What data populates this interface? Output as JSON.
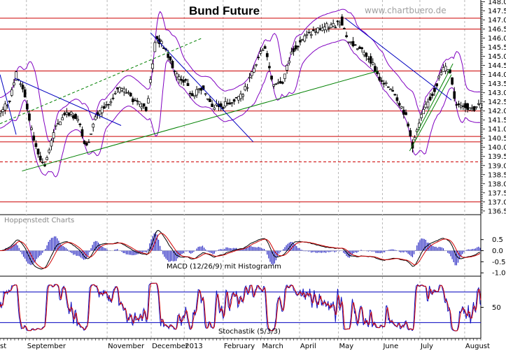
{
  "chart_data": {
    "type": "candlestick",
    "title": "Bund Future",
    "watermark": "www.chartbuero.de",
    "source_label": "Hoppenstedt Charts",
    "price_axis_ticks": [
      "148.0",
      "147.5",
      "147.0",
      "146.5",
      "146.0",
      "145.5",
      "145.0",
      "144.5",
      "144.0",
      "143.5",
      "143.0",
      "142.5",
      "142.0",
      "141.5",
      "141.0",
      "140.5",
      "140.0",
      "139.5",
      "139.0",
      "138.5",
      "138.0",
      "137.5",
      "137.0",
      "136.5"
    ],
    "price_ylim": [
      136.3,
      148.1
    ],
    "months": [
      {
        "label": "st",
        "index": 0
      },
      {
        "label": "September",
        "index": 36
      },
      {
        "label": "November",
        "index": 146
      },
      {
        "label": "December",
        "index": 206
      },
      {
        "label": "2013",
        "index": 251
      },
      {
        "label": "February",
        "index": 304
      },
      {
        "label": "March",
        "index": 356
      },
      {
        "label": "April",
        "index": 408
      },
      {
        "label": "May",
        "index": 461
      },
      {
        "label": "June",
        "index": 521
      },
      {
        "label": "July",
        "index": 572
      },
      {
        "label": "August",
        "index": 633
      }
    ],
    "closes": [
      {
        "i": 0,
        "v": 141.9
      },
      {
        "i": 12,
        "v": 142.5
      },
      {
        "i": 22,
        "v": 144.0
      },
      {
        "i": 32,
        "v": 143.2
      },
      {
        "i": 45,
        "v": 140.5
      },
      {
        "i": 60,
        "v": 138.9
      },
      {
        "i": 75,
        "v": 141.0
      },
      {
        "i": 90,
        "v": 142.0
      },
      {
        "i": 105,
        "v": 141.6
      },
      {
        "i": 118,
        "v": 140.0
      },
      {
        "i": 130,
        "v": 141.8
      },
      {
        "i": 145,
        "v": 142.3
      },
      {
        "i": 160,
        "v": 143.2
      },
      {
        "i": 172,
        "v": 143.0
      },
      {
        "i": 185,
        "v": 142.5
      },
      {
        "i": 200,
        "v": 142.1
      },
      {
        "i": 212,
        "v": 146.0
      },
      {
        "i": 225,
        "v": 145.5
      },
      {
        "i": 240,
        "v": 144.0
      },
      {
        "i": 252,
        "v": 143.6
      },
      {
        "i": 262,
        "v": 142.8
      },
      {
        "i": 275,
        "v": 143.3
      },
      {
        "i": 290,
        "v": 142.2
      },
      {
        "i": 305,
        "v": 142.3
      },
      {
        "i": 318,
        "v": 142.6
      },
      {
        "i": 332,
        "v": 143.0
      },
      {
        "i": 345,
        "v": 144.2
      },
      {
        "i": 360,
        "v": 145.7
      },
      {
        "i": 372,
        "v": 143.5
      },
      {
        "i": 385,
        "v": 143.6
      },
      {
        "i": 398,
        "v": 145.3
      },
      {
        "i": 410,
        "v": 145.9
      },
      {
        "i": 425,
        "v": 146.3
      },
      {
        "i": 440,
        "v": 146.6
      },
      {
        "i": 455,
        "v": 146.7
      },
      {
        "i": 465,
        "v": 147.0
      },
      {
        "i": 475,
        "v": 145.8
      },
      {
        "i": 490,
        "v": 145.4
      },
      {
        "i": 505,
        "v": 144.8
      },
      {
        "i": 520,
        "v": 143.5
      },
      {
        "i": 535,
        "v": 143.2
      },
      {
        "i": 552,
        "v": 141.8
      },
      {
        "i": 562,
        "v": 140.1
      },
      {
        "i": 575,
        "v": 141.8
      },
      {
        "i": 590,
        "v": 143.0
      },
      {
        "i": 603,
        "v": 144.3
      },
      {
        "i": 612,
        "v": 144.4
      },
      {
        "i": 620,
        "v": 142.5
      },
      {
        "i": 632,
        "v": 142.3
      },
      {
        "i": 645,
        "v": 142.1
      },
      {
        "i": 650,
        "v": 142.3
      }
    ],
    "horizontal_levels": [
      147.1,
      146.5,
      144.2,
      142.0,
      140.6,
      140.3,
      137.0
    ],
    "dashed_levels": [
      139.2
    ],
    "trend_lines": [
      {
        "type": "support",
        "color": "#008000",
        "points": [
          [
            30,
            138.7
          ],
          [
            515,
            144.2
          ]
        ]
      },
      {
        "type": "support",
        "color": "#008000",
        "points": [
          [
            558,
            139.8
          ],
          [
            615,
            144.0
          ]
        ]
      },
      {
        "type": "support",
        "color": "#008000",
        "points": [
          [
            568,
            140.8
          ],
          [
            617,
            144.6
          ]
        ]
      },
      {
        "type": "resistance",
        "color": "#0000c0",
        "points": [
          [
            0,
            144.0
          ],
          [
            22,
            140.7
          ]
        ]
      },
      {
        "type": "resistance",
        "color": "#0000c0",
        "points": [
          [
            20,
            143.8
          ],
          [
            165,
            141.2
          ]
        ]
      },
      {
        "type": "resistance",
        "color": "#0000c0",
        "points": [
          [
            205,
            146.3
          ],
          [
            345,
            140.3
          ]
        ]
      },
      {
        "type": "resistance",
        "color": "#0000c0",
        "points": [
          [
            470,
            147.1
          ],
          [
            615,
            142.6
          ]
        ]
      },
      {
        "type": "trend-dashed",
        "color": "#008000",
        "points": [
          [
            0,
            141.3
          ],
          [
            275,
            146.0
          ]
        ]
      }
    ],
    "macd": {
      "label": "MACD (12/26/9) mit Histogramm",
      "ticks": [
        "0.5",
        "0.0",
        "-0.5",
        "-1.0"
      ],
      "ylim": [
        -1.15,
        0.9
      ]
    },
    "stochastic": {
      "label": "Stochastik (5/3/3)",
      "ticks": [
        "50"
      ],
      "ylim": [
        0,
        100
      ],
      "levels": [
        80,
        20
      ]
    }
  }
}
